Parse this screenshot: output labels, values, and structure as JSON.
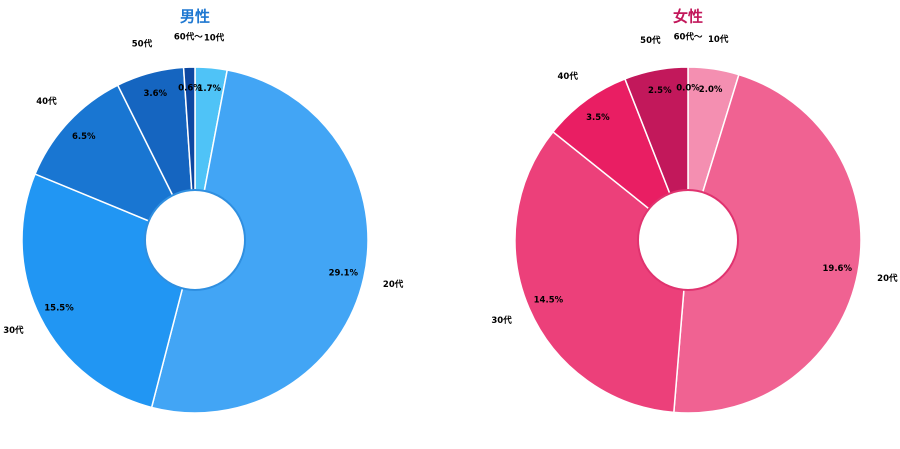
{
  "chart_data": [
    {
      "type": "pie",
      "title": "男性",
      "title_color": "#1f78d1",
      "hole_color": "#2f8fe0",
      "categories": [
        "10代",
        "20代",
        "30代",
        "40代",
        "50代",
        "60代〜"
      ],
      "values": [
        1.7,
        29.1,
        15.5,
        6.5,
        3.6,
        0.6
      ],
      "value_labels": [
        "1.7%",
        "29.1%",
        "15.5%",
        "6.5%",
        "3.6%",
        "0.6%"
      ],
      "colors": [
        "#4fc3f7",
        "#42a5f5",
        "#2196f3",
        "#1976d2",
        "#1565c0",
        "#0d47a1"
      ],
      "legend": "none"
    },
    {
      "type": "pie",
      "title": "女性",
      "title_color": "#c2185b",
      "hole_color": "#e0336f",
      "categories": [
        "10代",
        "20代",
        "30代",
        "40代",
        "50代",
        "60代〜"
      ],
      "values": [
        2.0,
        19.6,
        14.5,
        3.5,
        2.5,
        0.0
      ],
      "value_labels": [
        "2.0%",
        "19.6%",
        "14.5%",
        "3.5%",
        "2.5%",
        "0.0%"
      ],
      "colors": [
        "#f48fb1",
        "#f06292",
        "#ec407a",
        "#e91e63",
        "#c2185b",
        "#ad1457"
      ],
      "legend": "none"
    }
  ]
}
